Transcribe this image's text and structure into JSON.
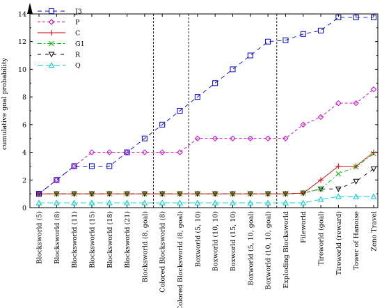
{
  "chart_data": {
    "type": "line",
    "title": "",
    "xlabel": "",
    "ylabel": "cumulative goal probability",
    "ylim": [
      0,
      14
    ],
    "yticks": [
      0,
      2,
      4,
      6,
      8,
      10,
      12,
      14
    ],
    "grid": false,
    "legend_position": "top-left",
    "categories": [
      "Blocksworld (5)",
      "Blocksworld (8)",
      "Blocksworld (11)",
      "Blocksworld (15)",
      "Blocksworld (18)",
      "Blocksworld (21)",
      "Blocksworld (8, goal)",
      "Colored Blocksworld (8)",
      "Colored Blocksworld (8, goal)",
      "Boxworld (5, 10)",
      "Boxworld (10, 10)",
      "Boxworld (15, 10)",
      "Boxworld (5, 10, goal)",
      "Boxworld (10, 10, goal)",
      "Exploding Blocksworld",
      "Fileworld",
      "Tireworld (goal)",
      "Tireworld (reward)",
      "Tower of Hanoise",
      "Zeno Travel"
    ],
    "group_separators_after": [
      6,
      8,
      13
    ],
    "series": [
      {
        "name": "J3",
        "color": "#0000cc",
        "dash": "6,5",
        "marker": "square",
        "values": [
          1,
          2,
          3,
          3,
          3,
          4,
          5,
          6,
          7,
          8,
          9,
          10,
          11,
          12,
          12.1,
          12.55,
          12.8,
          13.75,
          13.75,
          13.75
        ]
      },
      {
        "name": "P",
        "color": "#cc00cc",
        "dash": "4,3",
        "marker": "diamond",
        "values": [
          1,
          2,
          3,
          4,
          4,
          4,
          4,
          4,
          4,
          5,
          5,
          5,
          5,
          5,
          5,
          6,
          6.55,
          7.55,
          7.55,
          8.55
        ]
      },
      {
        "name": "C",
        "color": "#cc0000",
        "dash": "",
        "marker": "plus",
        "values": [
          1,
          1,
          1,
          1,
          1,
          1,
          1,
          1,
          1,
          1,
          1,
          1,
          1,
          1,
          1,
          1.05,
          2,
          3,
          3,
          4
        ]
      },
      {
        "name": "G1",
        "color": "#00bb00",
        "dash": "6,3,2,3",
        "marker": "x",
        "values": [
          1,
          1,
          1,
          1,
          1,
          1,
          1,
          1,
          1,
          1,
          1,
          1,
          1,
          1,
          1,
          1.05,
          1.35,
          2.45,
          2.95,
          3.9
        ]
      },
      {
        "name": "R",
        "color": "#000000",
        "dash": "5,6",
        "marker": "triangle-down",
        "values": [
          1,
          1,
          1,
          1,
          1,
          1,
          1,
          1,
          1,
          1,
          1,
          1,
          1,
          1,
          1,
          1.05,
          1.35,
          1.35,
          1.9,
          2.8
        ]
      },
      {
        "name": "Q",
        "color": "#00cccc",
        "dash": "8,4",
        "marker": "triangle-up",
        "values": [
          0.35,
          0.35,
          0.35,
          0.35,
          0.35,
          0.35,
          0.35,
          0.35,
          0.35,
          0.35,
          0.35,
          0.35,
          0.35,
          0.35,
          0.35,
          0.35,
          0.6,
          0.8,
          0.8,
          0.8
        ]
      }
    ]
  }
}
